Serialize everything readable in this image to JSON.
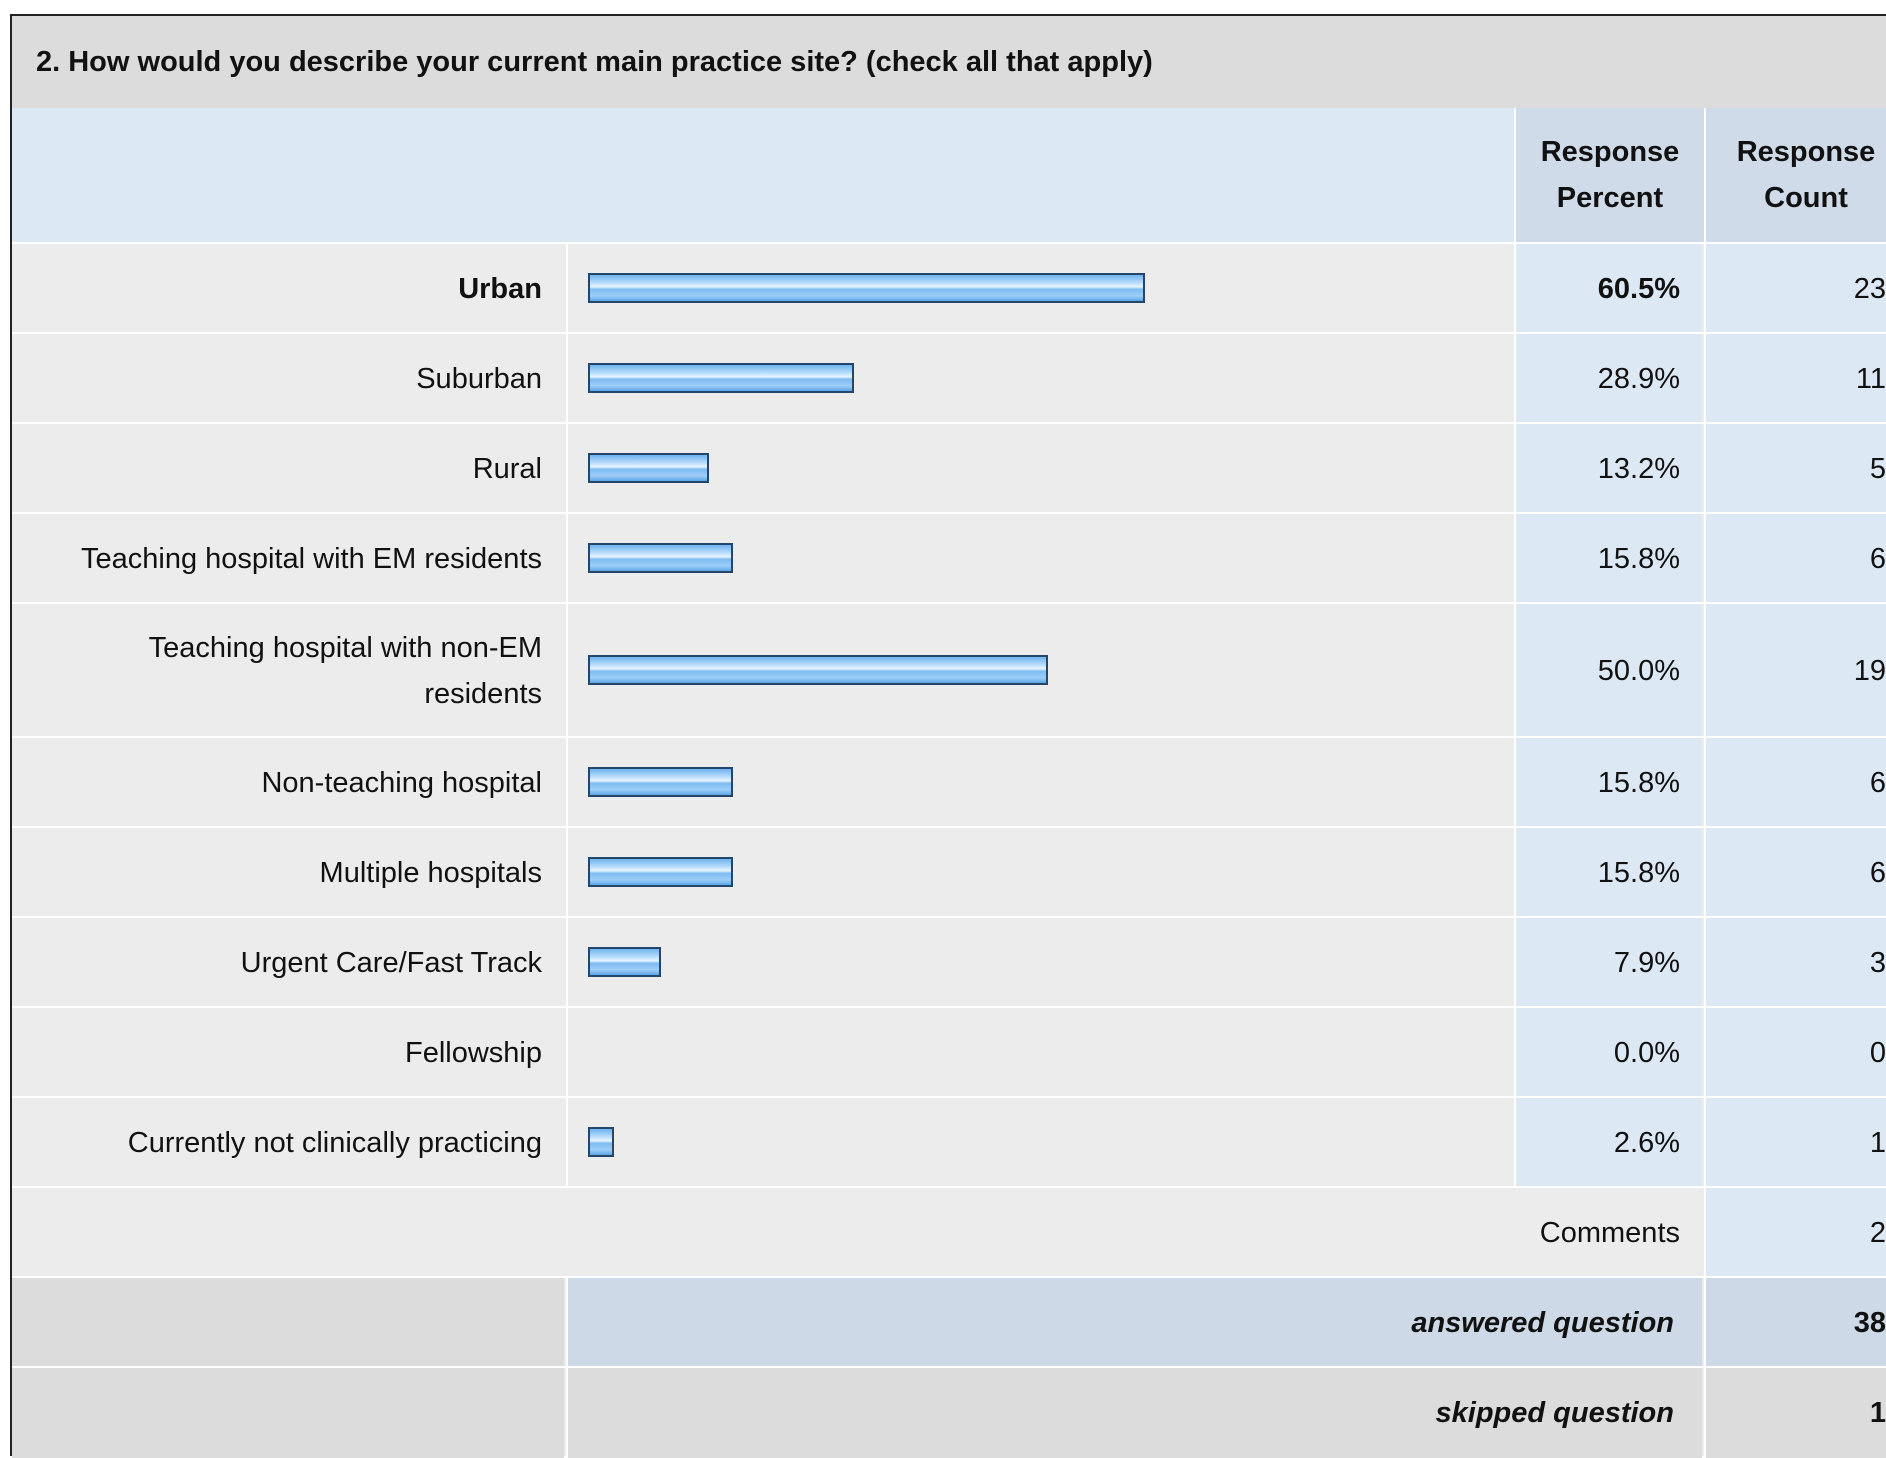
{
  "question_title": "2. How would you describe your current main practice site? (check all that apply)",
  "headers": {
    "percent": "Response Percent",
    "count": "Response Count"
  },
  "chart_data": {
    "type": "bar",
    "orientation": "horizontal",
    "categories": [
      "Urban",
      "Suburban",
      "Rural",
      "Teaching hospital with EM residents",
      "Teaching hospital with non-EM residents",
      "Non-teaching hospital",
      "Multiple hospitals",
      "Urgent Care/Fast Track",
      "Fellowship",
      "Currently not clinically practicing"
    ],
    "values": [
      60.5,
      28.9,
      13.2,
      15.8,
      50.0,
      15.8,
      15.8,
      7.9,
      0.0,
      2.6
    ],
    "value_labels": [
      "60.5%",
      "28.9%",
      "13.2%",
      "15.8%",
      "50.0%",
      "15.8%",
      "15.8%",
      "7.9%",
      "0.0%",
      "2.6%"
    ],
    "counts": [
      "23",
      "11",
      "5",
      "6",
      "19",
      "6",
      "6",
      "3",
      "0",
      "1"
    ],
    "xlim": [
      0,
      100
    ],
    "bar_color": "#7dbcf2",
    "bar_border": "#23466a"
  },
  "comments": {
    "label": "Comments",
    "count": "2"
  },
  "answered": {
    "label": "answered question",
    "count": "38"
  },
  "skipped": {
    "label": "skipped question",
    "count": "1"
  }
}
